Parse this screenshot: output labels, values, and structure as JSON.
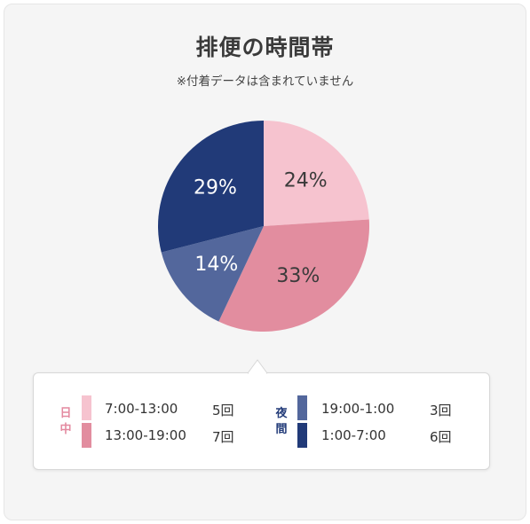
{
  "title": "排便の時間帯",
  "subtitle": "※付着データは含まれていません",
  "colors": {
    "day_early": "#f6c3cf",
    "day_late": "#e28d9f",
    "night_early": "#53679c",
    "night_late": "#213a78",
    "day_label": "#e48aa0",
    "night_label": "#213a78"
  },
  "chart_data": {
    "type": "pie",
    "title": "排便の時間帯",
    "slices": [
      {
        "label": "7:00-13:00",
        "value": 24,
        "display": "24%",
        "color": "#f6c3cf",
        "text_color": "#3a3a3a"
      },
      {
        "label": "13:00-19:00",
        "value": 33,
        "display": "33%",
        "color": "#e28d9f",
        "text_color": "#3a3a3a"
      },
      {
        "label": "19:00-1:00",
        "value": 14,
        "display": "14%",
        "color": "#53679c",
        "text_color": "#ffffff"
      },
      {
        "label": "1:00-7:00",
        "value": 29,
        "display": "29%",
        "color": "#213a78",
        "text_color": "#ffffff"
      }
    ]
  },
  "legend": {
    "day": {
      "group_label": "日中",
      "rows": [
        {
          "time": "7:00-13:00",
          "count": "5回"
        },
        {
          "time": "13:00-19:00",
          "count": "7回"
        }
      ]
    },
    "night": {
      "group_label": "夜間",
      "rows": [
        {
          "time": "19:00-1:00",
          "count": "3回"
        },
        {
          "time": "1:00-7:00",
          "count": "6回"
        }
      ]
    }
  }
}
